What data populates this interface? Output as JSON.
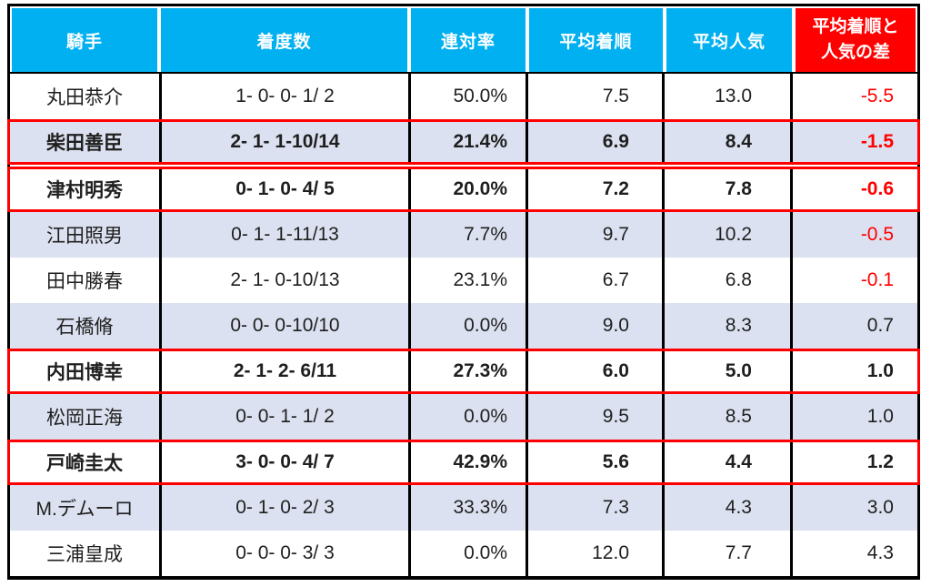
{
  "chart_data": {
    "type": "table",
    "title": "",
    "columns": [
      {
        "key": "jockey",
        "label": "騎手"
      },
      {
        "key": "record",
        "label": "着度数"
      },
      {
        "key": "quinella_rate",
        "label": "連対率"
      },
      {
        "key": "avg_finish",
        "label": "平均着順"
      },
      {
        "key": "avg_popularity",
        "label": "平均人気"
      },
      {
        "key": "diff",
        "label": "平均着順と人気の差",
        "label_line1": "平均着順と",
        "label_line2": "人気の差"
      }
    ],
    "rows": [
      {
        "jockey": "丸田恭介",
        "record": "1- 0- 0- 1/ 2",
        "quinella_rate": "50.0%",
        "avg_finish": "7.5",
        "avg_popularity": "13.0",
        "diff": "-5.5",
        "highlight": false
      },
      {
        "jockey": "柴田善臣",
        "record": "2- 1- 1-10/14",
        "quinella_rate": "21.4%",
        "avg_finish": "6.9",
        "avg_popularity": "8.4",
        "diff": "-1.5",
        "highlight": true
      },
      {
        "jockey": "津村明秀",
        "record": "0- 1- 0- 4/ 5",
        "quinella_rate": "20.0%",
        "avg_finish": "7.2",
        "avg_popularity": "7.8",
        "diff": "-0.6",
        "highlight": true
      },
      {
        "jockey": "江田照男",
        "record": "0- 1- 1-11/13",
        "quinella_rate": "7.7%",
        "avg_finish": "9.7",
        "avg_popularity": "10.2",
        "diff": "-0.5",
        "highlight": false
      },
      {
        "jockey": "田中勝春",
        "record": "2- 1- 0-10/13",
        "quinella_rate": "23.1%",
        "avg_finish": "6.7",
        "avg_popularity": "6.8",
        "diff": "-0.1",
        "highlight": false
      },
      {
        "jockey": "石橋脩",
        "record": "0- 0- 0-10/10",
        "quinella_rate": "0.0%",
        "avg_finish": "9.0",
        "avg_popularity": "8.3",
        "diff": "0.7",
        "highlight": false
      },
      {
        "jockey": "内田博幸",
        "record": "2- 1- 2- 6/11",
        "quinella_rate": "27.3%",
        "avg_finish": "6.0",
        "avg_popularity": "5.0",
        "diff": "1.0",
        "highlight": true
      },
      {
        "jockey": "松岡正海",
        "record": "0- 0- 1- 1/ 2",
        "quinella_rate": "0.0%",
        "avg_finish": "9.5",
        "avg_popularity": "8.5",
        "diff": "1.0",
        "highlight": false
      },
      {
        "jockey": "戸崎圭太",
        "record": "3- 0- 0- 4/ 7",
        "quinella_rate": "42.9%",
        "avg_finish": "5.6",
        "avg_popularity": "4.4",
        "diff": "1.2",
        "highlight": true
      },
      {
        "jockey": "M.デムーロ",
        "record": "0- 1- 0- 2/ 3",
        "quinella_rate": "33.3%",
        "avg_finish": "7.3",
        "avg_popularity": "4.3",
        "diff": "3.0",
        "highlight": false
      },
      {
        "jockey": "三浦皇成",
        "record": "0- 0- 0- 3/ 3",
        "quinella_rate": "0.0%",
        "avg_finish": "12.0",
        "avg_popularity": "7.7",
        "diff": "4.3",
        "highlight": false
      }
    ],
    "layout_hints": {
      "header_background": "#00B0F0",
      "diff_header_background": "#FF0000",
      "alt_row_background": "#DBE1F0",
      "highlight_border_color": "#FF0000",
      "negative_value_color": "#FF0000",
      "grid_color": "#000000"
    }
  }
}
